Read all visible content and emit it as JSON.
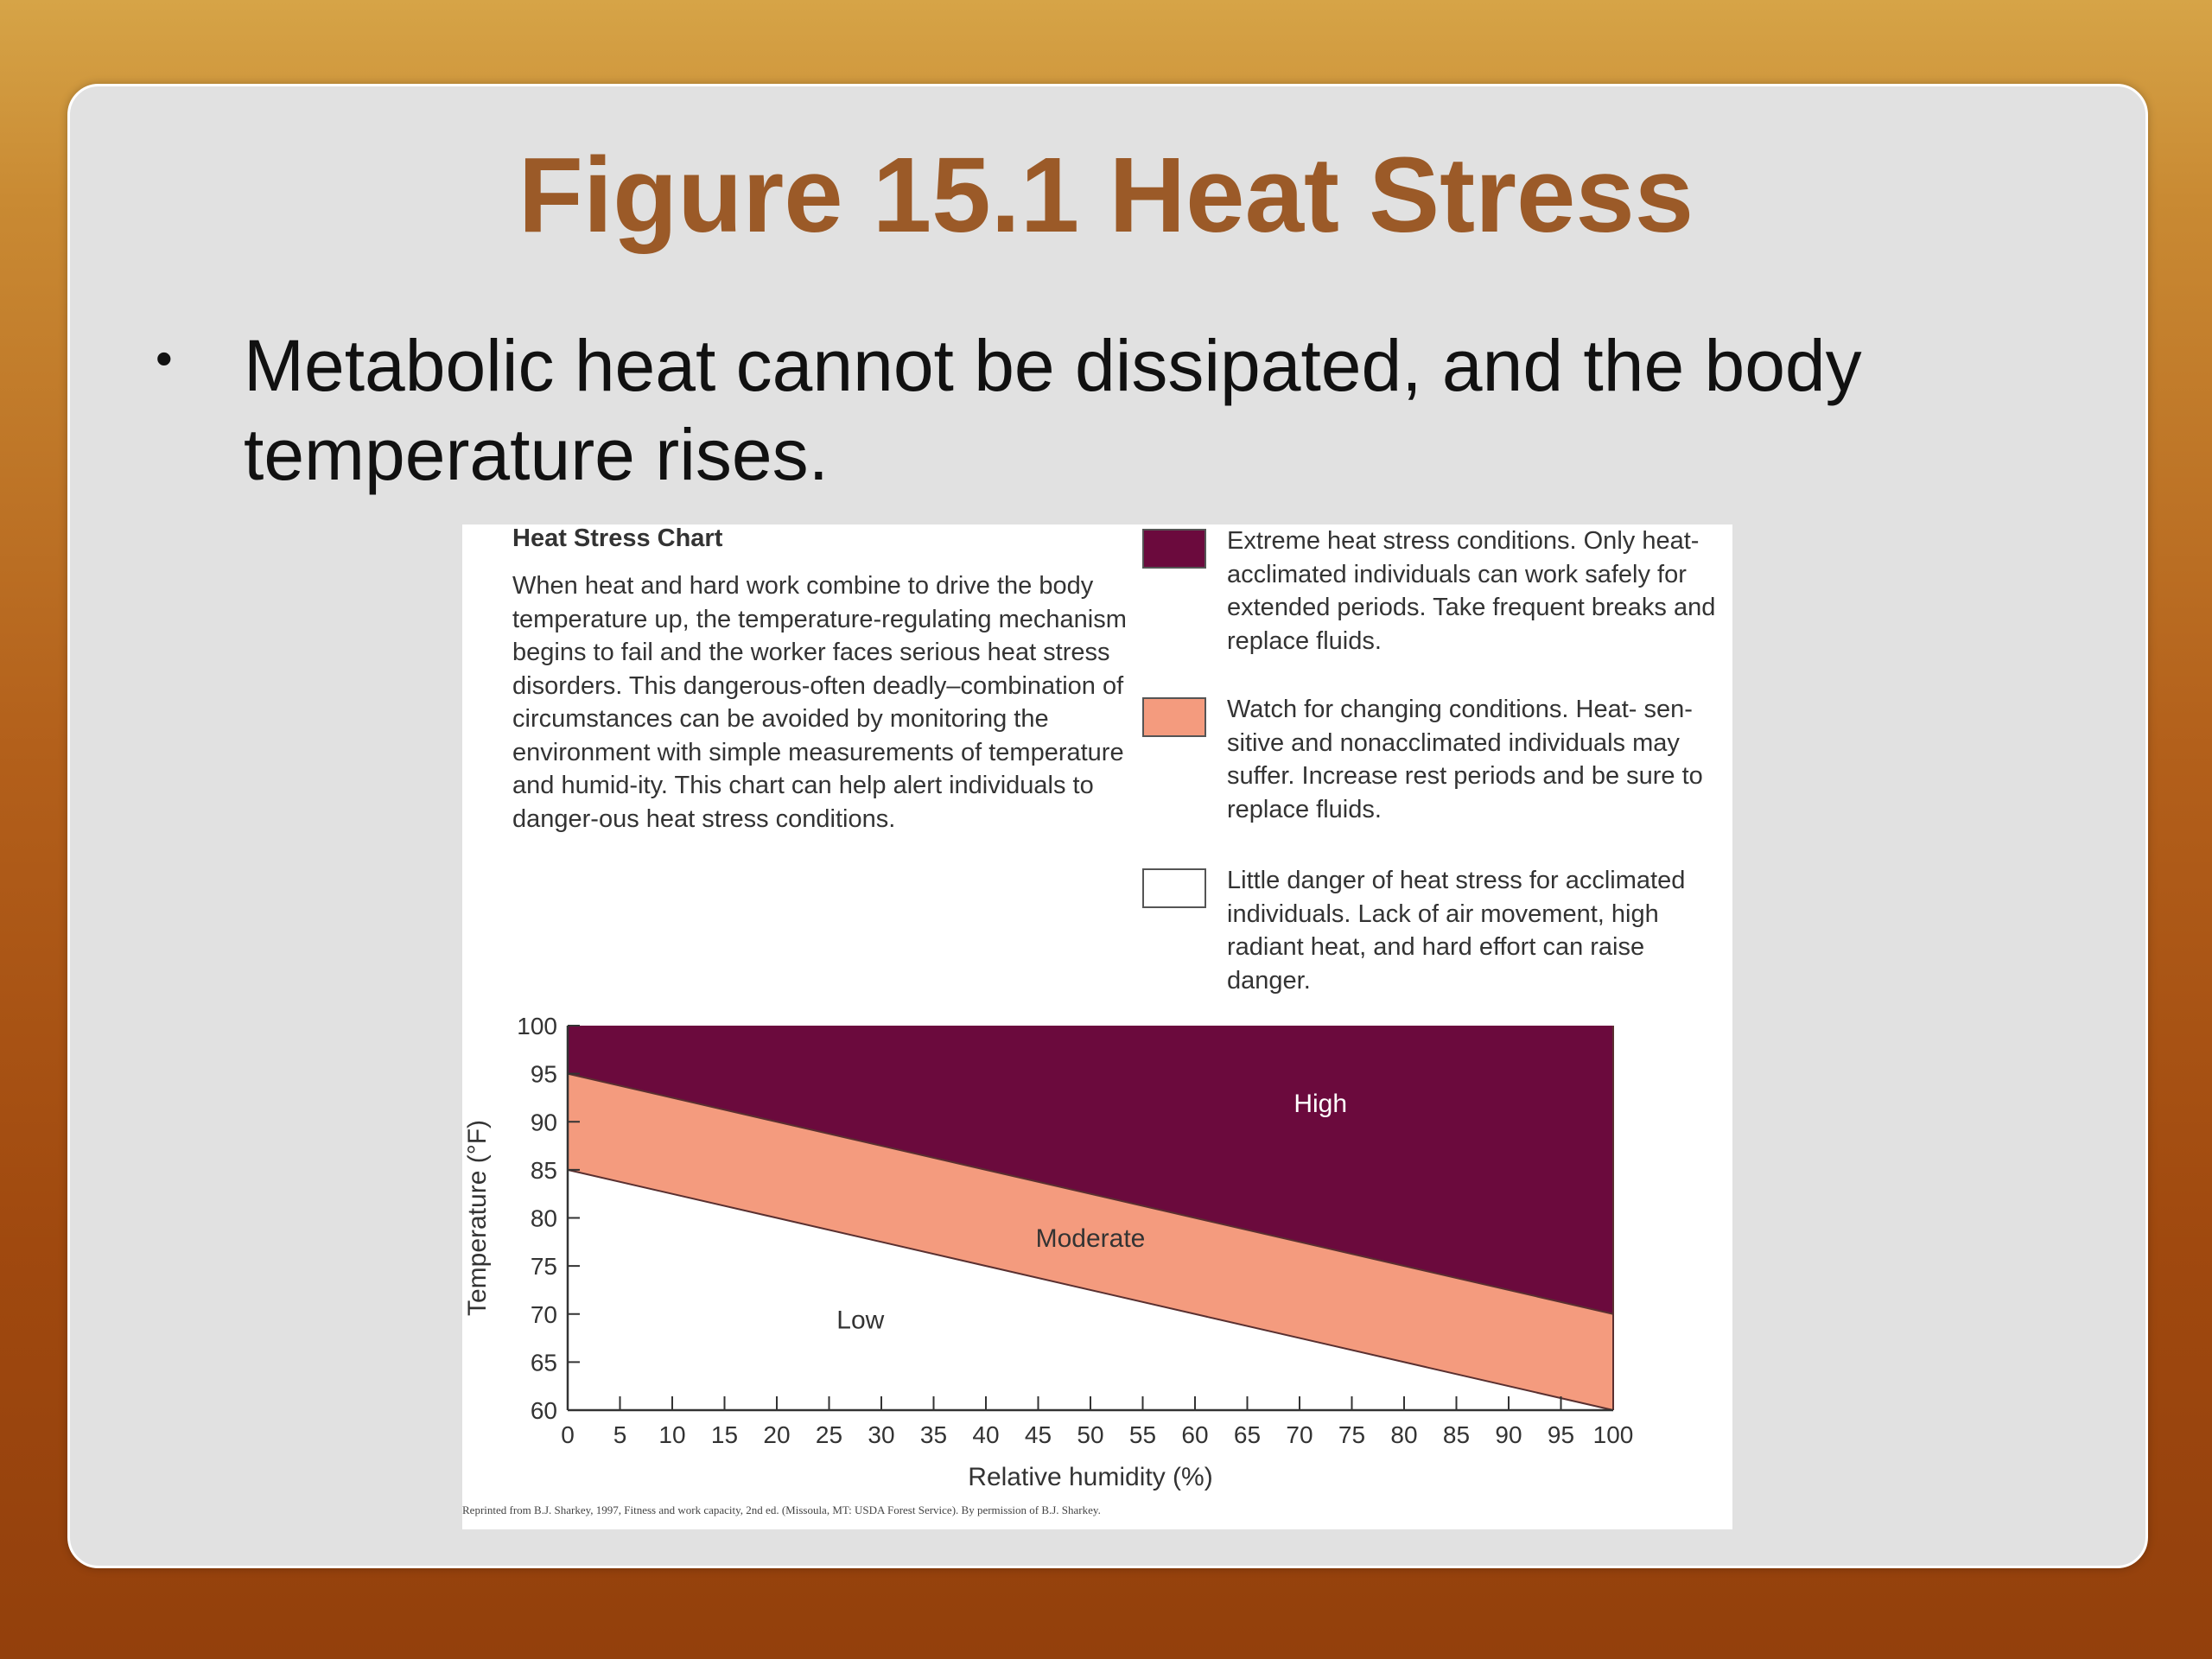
{
  "slide": {
    "title": "Figure 15.1 Heat Stress",
    "bullet_marker": "•",
    "bullet": "Metabolic heat cannot be dissipated, and the body temperature rises."
  },
  "figure": {
    "heading": "Heat Stress Chart",
    "description": "When heat and hard work combine to drive the body temperature up, the temperature-regulating mechanism begins to fail and the worker faces serious heat stress disorders. This dangerous-often deadly–combination of circumstances can be avoided by monitoring the environment with simple measurements of temperature and humid-ity. This chart can help alert individuals to danger-ous heat stress conditions.",
    "legend": [
      {
        "color": "#6b0a3d",
        "text": "Extreme heat stress conditions. Only heat-acclimated individuals can work safely for extended periods. Take frequent breaks and replace fluids."
      },
      {
        "color": "#f49b7e",
        "text": "Watch for changing conditions. Heat- sen-sitive and nonacclimated individuals may suffer. Increase rest periods and be sure to replace fluids."
      },
      {
        "color": "#ffffff",
        "text": "Little danger of heat stress for acclimated individuals. Lack of air movement, high radiant heat, and hard effort can raise danger."
      }
    ],
    "citation": "Reprinted from B.J. Sharkey, 1997, Fitness and work capacity, 2nd ed. (Missoula, MT: USDA Forest Service). By permission of B.J. Sharkey."
  },
  "chart_data": {
    "type": "area",
    "xlabel": "Relative humidity (%)",
    "ylabel": "Temperature (°F)",
    "xlim": [
      0,
      100
    ],
    "ylim": [
      60,
      100
    ],
    "xticks": [
      0,
      5,
      10,
      15,
      20,
      25,
      30,
      35,
      40,
      45,
      50,
      55,
      60,
      65,
      70,
      75,
      80,
      85,
      90,
      95,
      100
    ],
    "yticks": [
      60,
      65,
      70,
      75,
      80,
      85,
      90,
      95,
      100
    ],
    "boundaries": [
      {
        "name": "Low/Moderate",
        "x": [
          0,
          100
        ],
        "y": [
          85,
          60
        ]
      },
      {
        "name": "Moderate/High",
        "x": [
          0,
          100
        ],
        "y": [
          95,
          70
        ]
      }
    ],
    "zones": [
      {
        "label": "High",
        "color": "#6b0a3d",
        "text_color": "#ffffff",
        "label_at": [
          72,
          91
        ]
      },
      {
        "label": "Moderate",
        "color": "#f49b7e",
        "text_color": "#333333",
        "label_at": [
          50,
          77
        ]
      },
      {
        "label": "Low",
        "color": "#ffffff",
        "text_color": "#333333",
        "label_at": [
          28,
          68.5
        ]
      }
    ]
  }
}
